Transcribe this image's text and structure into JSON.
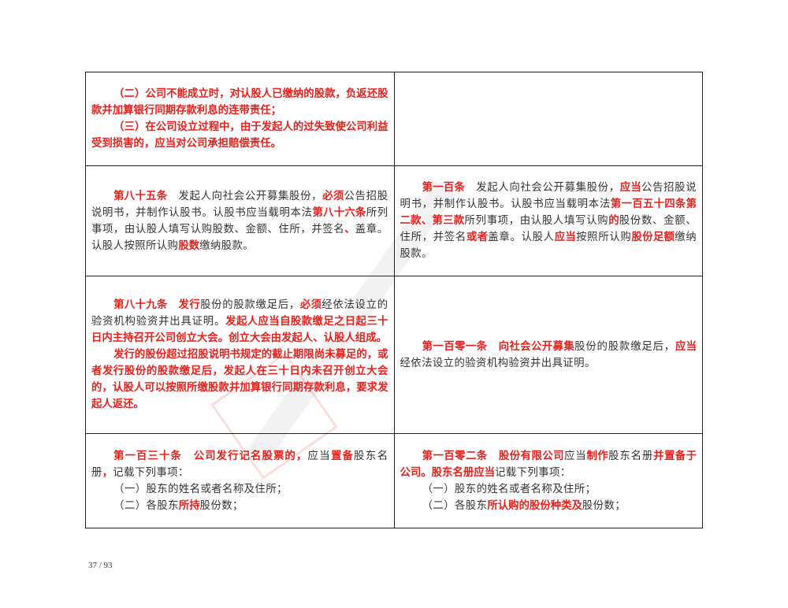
{
  "rows": [
    {
      "left": [
        [
          [
            "（二）公司不能成立时，对认股人已缴纳的股款，负返还股款并加算银行同期存款利息的连带责任；",
            true
          ]
        ],
        [
          [
            "（三）在公司设立过程中，由于发起人的过失致使公司利益受到损害的，应当对公司承担赔偿责任。",
            true
          ]
        ]
      ],
      "right": []
    },
    {
      "left": [
        [
          [
            "第八十五条",
            true
          ],
          [
            "　发起人向社会公开募集股份，",
            false
          ],
          [
            "必须",
            true
          ],
          [
            "公告招股说明书，并制作认股书。认股书应当载明本法",
            false
          ],
          [
            "第八十六条",
            true
          ],
          [
            "所列事项，由认股人填写认购股数、金额、住所，并签名",
            false
          ],
          [
            "、",
            true
          ],
          [
            "盖章。认股人按照所认购",
            false
          ],
          [
            "股数",
            true
          ],
          [
            "缴纳股款。",
            false
          ]
        ]
      ],
      "right": [
        [
          [
            "第一百条",
            true
          ],
          [
            "　发起人向社会公开募集股份，",
            false
          ],
          [
            "应当",
            true
          ],
          [
            "公告招股说明书，并制作认股书。认股书应当载明本法",
            false
          ],
          [
            "第一百五十四条第二款、第三款",
            true
          ],
          [
            "所列事项，由认股人填写认购",
            false
          ],
          [
            "的",
            true
          ],
          [
            "股份数、金额、住所，并签名",
            false
          ],
          [
            "或者",
            true
          ],
          [
            "盖章。认股人",
            false
          ],
          [
            "应当",
            true
          ],
          [
            "按照所认购",
            false
          ],
          [
            "股份足额",
            true
          ],
          [
            "缴纳股款。",
            false
          ]
        ]
      ]
    },
    {
      "left": [
        [
          [
            "第八十九条",
            true
          ],
          [
            "　",
            false
          ],
          [
            "发行",
            true
          ],
          [
            "股份的股款缴足后，",
            false
          ],
          [
            "必须",
            true
          ],
          [
            "经依法设立的验资机构验资并出具证明。",
            false
          ],
          [
            "发起人应当自股款缴足之日起三十日内主持召开公司创立大会。创立大会由发起人、认股人组成。",
            true
          ]
        ],
        [
          [
            "发行的股份超过招股说明书规定的截止期限尚未募足的，或者发行股份的股款缴足后，发起人在三十日内未召开创立大会的，认股人可以按照所缴股款并加算银行同期存款利息，要求发起人返还。",
            true
          ]
        ]
      ],
      "right": [
        [
          [
            "第一百零一条",
            true
          ],
          [
            "　",
            false
          ],
          [
            "向社会公开募集",
            true
          ],
          [
            "股份的股款缴足后，",
            false
          ],
          [
            "应当",
            true
          ],
          [
            "经依法设立的验资机构验资并出具证明。",
            false
          ]
        ]
      ]
    },
    {
      "left": [
        [
          [
            "第一百三十条",
            true
          ],
          [
            "　",
            false
          ],
          [
            "公司发行记名股票的，",
            true
          ],
          [
            "应当",
            false
          ],
          [
            "置备",
            true
          ],
          [
            "股东名册",
            false
          ],
          [
            "，",
            true
          ],
          [
            "记载下列事项：",
            false
          ]
        ],
        [
          [
            "（一）股东的姓名或者名称及住所；",
            false
          ]
        ],
        [
          [
            "（二）各股东",
            false
          ],
          [
            "所持",
            true
          ],
          [
            "股份数；",
            false
          ]
        ]
      ],
      "right": [
        [
          [
            "第一百零二条",
            true
          ],
          [
            "　",
            false
          ],
          [
            "股份有限公司",
            true
          ],
          [
            "应当",
            false
          ],
          [
            "制作",
            true
          ],
          [
            "股东名册",
            false
          ],
          [
            "并置备于公司。股东名册应当",
            true
          ],
          [
            "记载下列事项：",
            false
          ]
        ],
        [
          [
            "（一）股东的姓名或者名称及住所；",
            false
          ]
        ],
        [
          [
            "（二）各股东",
            false
          ],
          [
            "所认购的股份种类及",
            true
          ],
          [
            "股份数；",
            false
          ]
        ]
      ]
    }
  ],
  "footer": {
    "page_number": "37 / 93"
  },
  "colors": {
    "highlight": "#e8201c",
    "text": "#333333"
  }
}
